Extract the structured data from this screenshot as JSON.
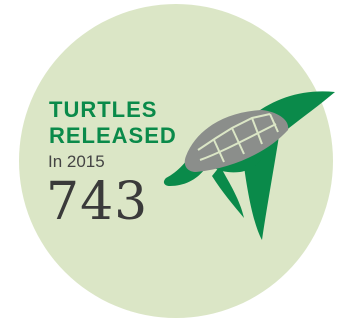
{
  "badge": {
    "title_line1": "TURTLES",
    "title_line2": "RELEASED",
    "subtitle": "In 2015",
    "count": "743",
    "icon": "sea-turtle-icon"
  },
  "colors": {
    "circle": "#dbe6c6",
    "accent": "#0a8a4a",
    "shell": "#8b8e8b",
    "shell_lines": "#dbe6c6",
    "count_text": "#3a3a3a",
    "subtitle_text": "#444444",
    "background": "#ffffff"
  }
}
